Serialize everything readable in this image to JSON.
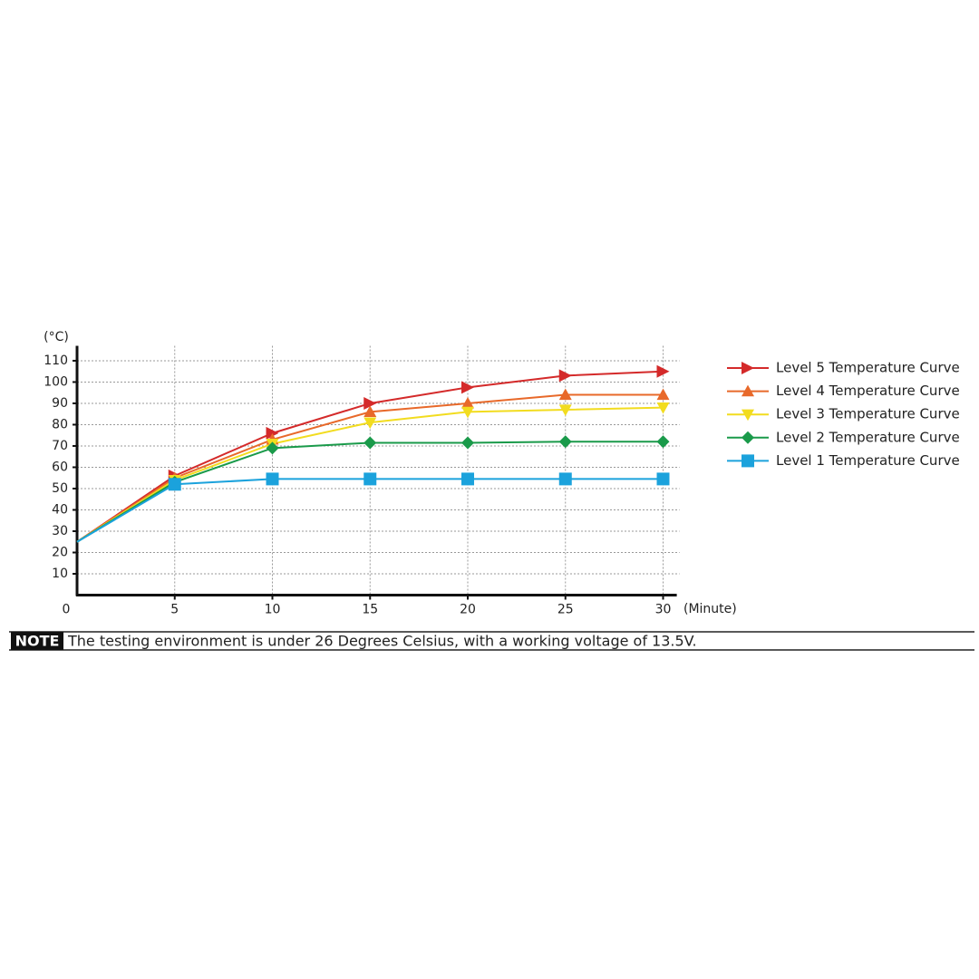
{
  "chart_data": {
    "type": "line",
    "ylabel": "(°C)",
    "xlabel": "(Minute)",
    "x": [
      0,
      5,
      10,
      15,
      20,
      25,
      30
    ],
    "series": [
      {
        "name": "Level 5 Temperature Curve",
        "color": "#d42a2a",
        "marker": "triangle-right",
        "values": [
          25,
          56,
          76,
          90,
          97.5,
          103,
          105
        ]
      },
      {
        "name": "Level 4 Temperature Curve",
        "color": "#e8692a",
        "marker": "triangle-up",
        "values": [
          25,
          55,
          73,
          86,
          90,
          94,
          94
        ]
      },
      {
        "name": "Level 3 Temperature Curve",
        "color": "#f2dc1f",
        "marker": "triangle-down",
        "values": [
          25,
          54,
          71,
          81,
          86,
          87,
          88
        ]
      },
      {
        "name": "Level 2 Temperature Curve",
        "color": "#1a9a4a",
        "marker": "diamond",
        "values": [
          25,
          53,
          69,
          71.5,
          71.5,
          72,
          72
        ]
      },
      {
        "name": "Level 1 Temperature Curve",
        "color": "#1ba2dc",
        "marker": "square",
        "values": [
          25,
          52,
          54.5,
          54.5,
          54.5,
          54.5,
          54.5
        ]
      }
    ],
    "xlim": [
      0,
      30.7
    ],
    "ylim": [
      0,
      117
    ],
    "xticks": [
      0,
      5,
      10,
      15,
      20,
      25,
      30
    ],
    "yticks": [
      10,
      20,
      30,
      40,
      50,
      60,
      70,
      80,
      90,
      100,
      110
    ],
    "grid": true,
    "legend": "right"
  },
  "note": {
    "tag": "NOTE",
    "text": "The testing environment is under 26 Degrees Celsius, with a working voltage of 13.5V."
  }
}
